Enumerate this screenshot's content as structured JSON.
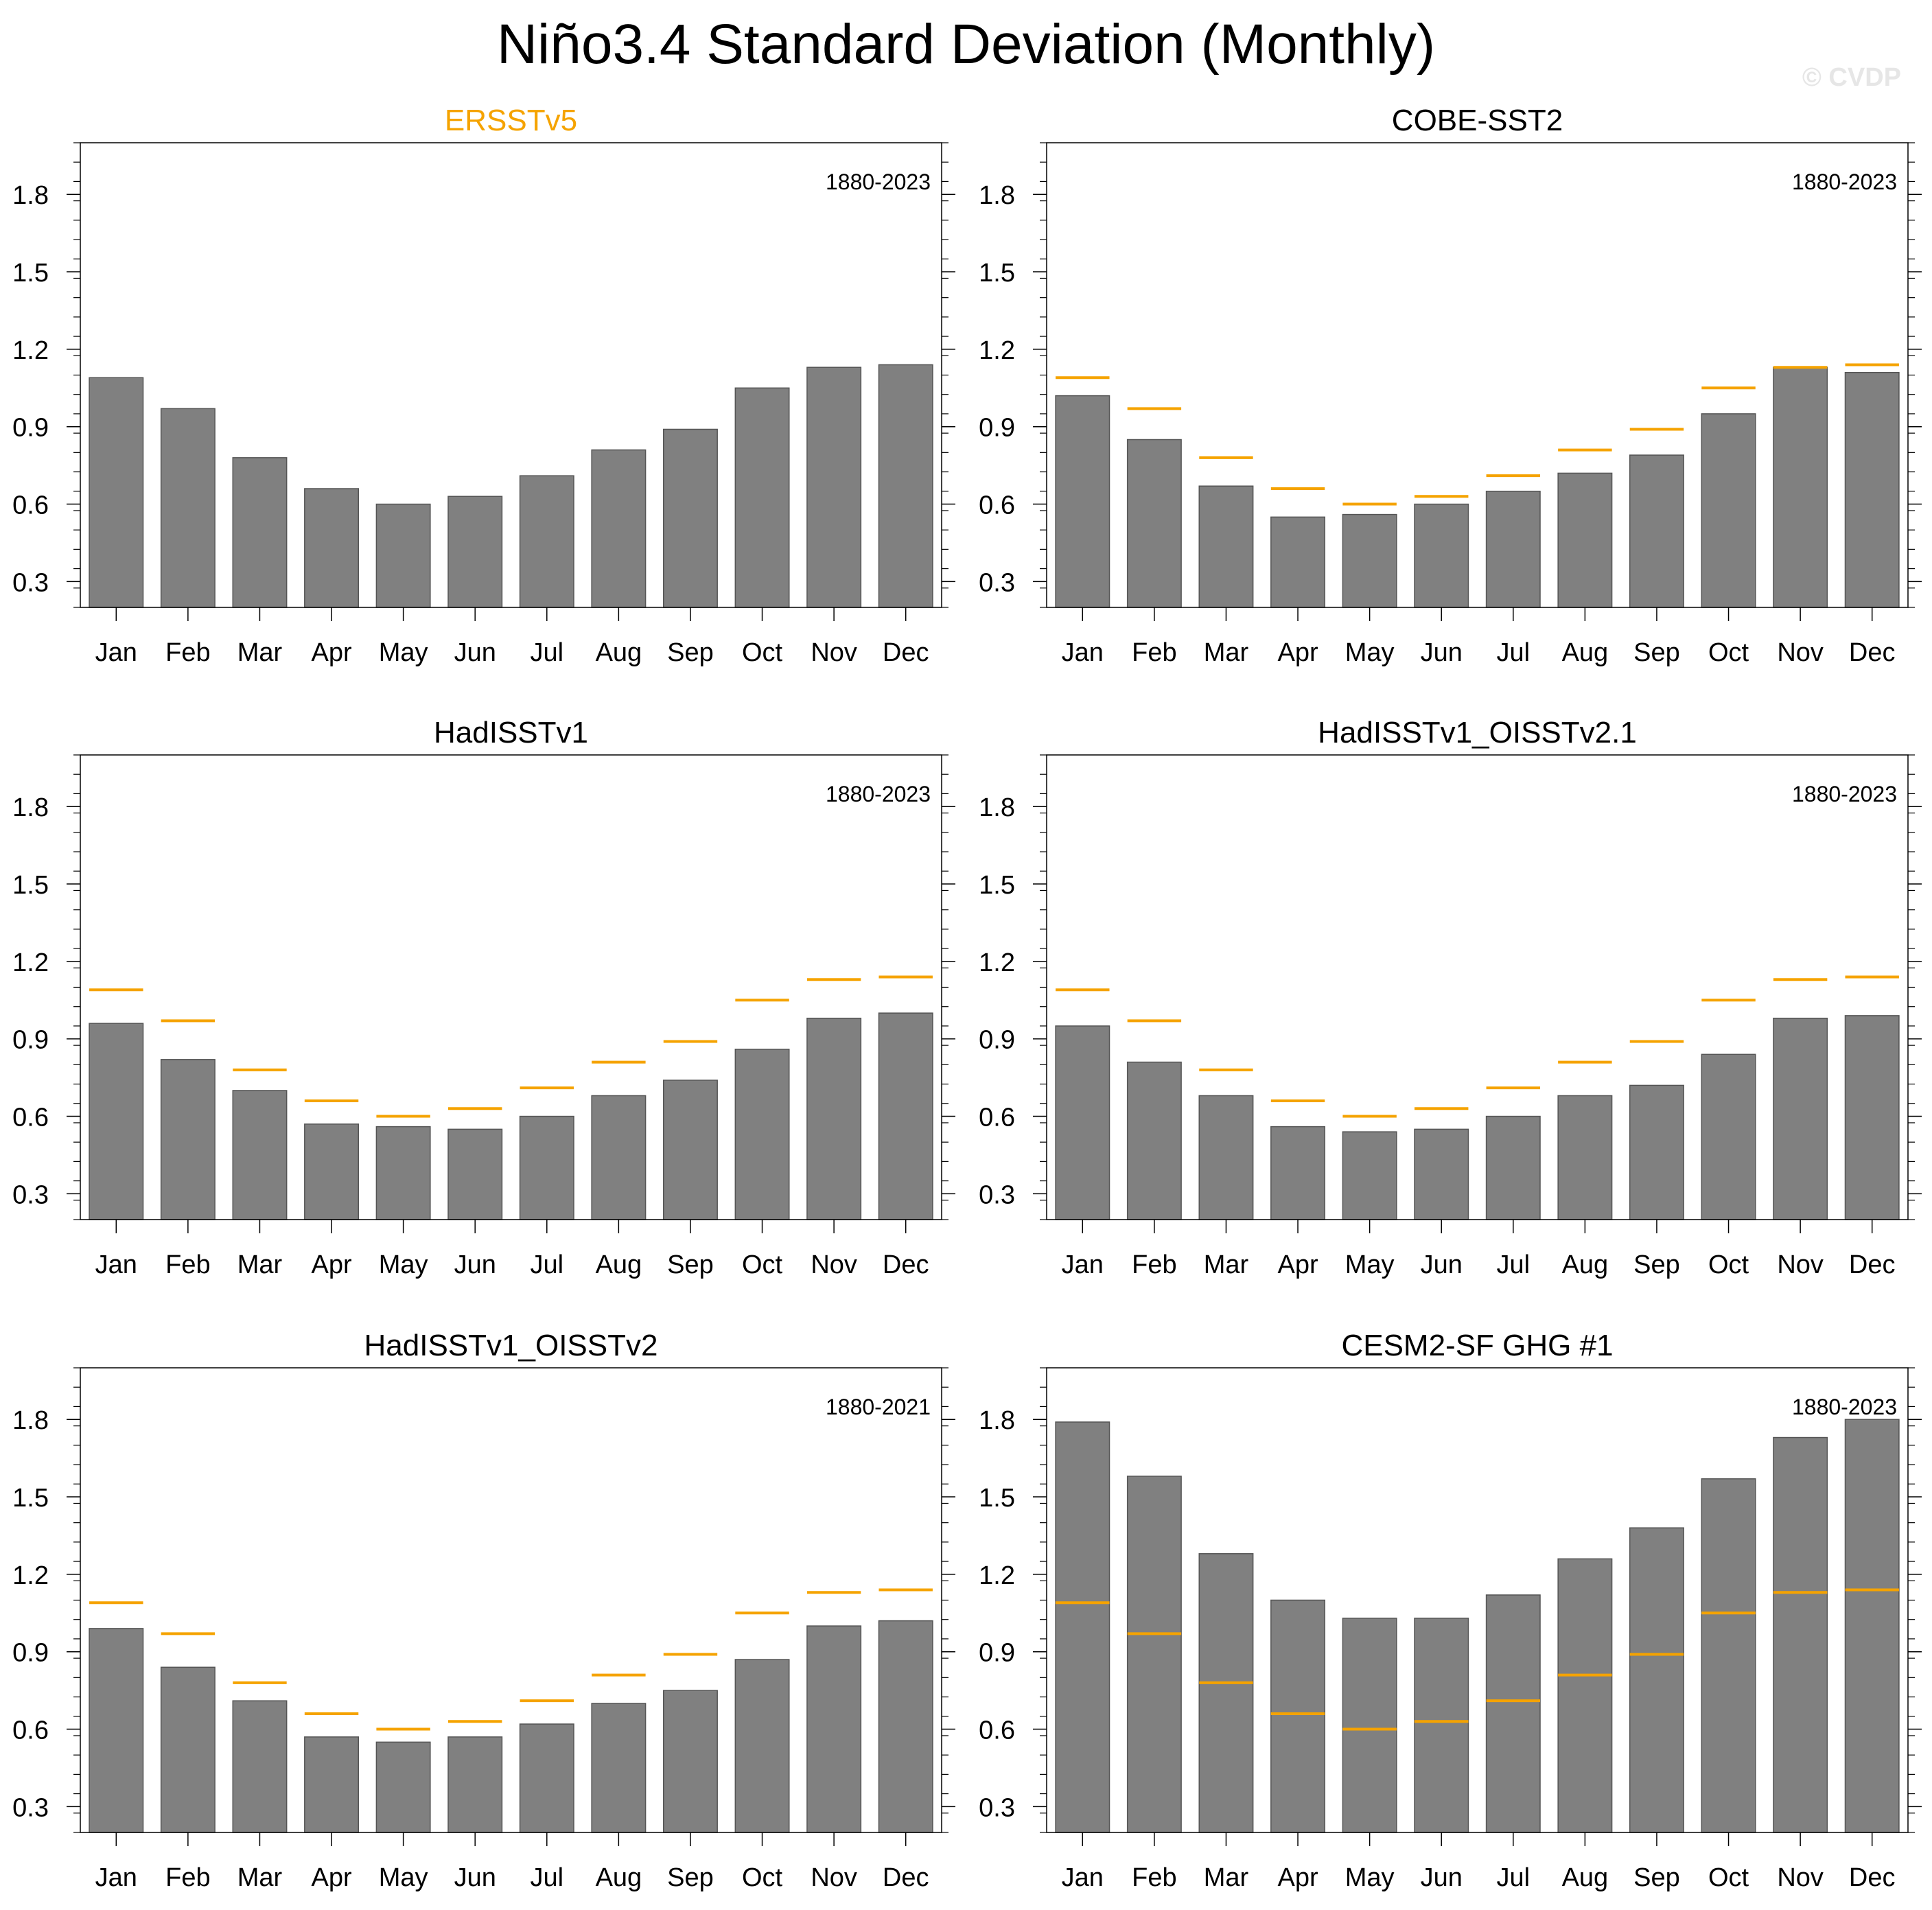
{
  "figure": {
    "title": "Niño3.4 Standard Deviation (Monthly)",
    "watermark": "© CVDP"
  },
  "colors": {
    "bar": "#808080",
    "reference_line": "#f5a300",
    "highlight_title": "#f5a300"
  },
  "chart_data": [
    {
      "type": "bar",
      "title": "ERSSTv5",
      "title_highlight": true,
      "period": "1880-2023",
      "categories": [
        "Jan",
        "Feb",
        "Mar",
        "Apr",
        "May",
        "Jun",
        "Jul",
        "Aug",
        "Sep",
        "Oct",
        "Nov",
        "Dec"
      ],
      "values": [
        1.09,
        0.97,
        0.78,
        0.66,
        0.6,
        0.63,
        0.71,
        0.81,
        0.89,
        1.05,
        1.13,
        1.14
      ],
      "reference": [],
      "ylim": [
        0.2,
        2.0
      ],
      "yticks": [
        "0.3",
        "0.6",
        "0.9",
        "1.2",
        "1.5",
        "1.8"
      ]
    },
    {
      "type": "bar",
      "title": "COBE-SST2",
      "title_highlight": false,
      "period": "1880-2023",
      "categories": [
        "Jan",
        "Feb",
        "Mar",
        "Apr",
        "May",
        "Jun",
        "Jul",
        "Aug",
        "Sep",
        "Oct",
        "Nov",
        "Dec"
      ],
      "values": [
        1.02,
        0.85,
        0.67,
        0.55,
        0.56,
        0.6,
        0.65,
        0.72,
        0.79,
        0.95,
        1.13,
        1.11
      ],
      "reference": [
        1.09,
        0.97,
        0.78,
        0.66,
        0.6,
        0.63,
        0.71,
        0.81,
        0.89,
        1.05,
        1.13,
        1.14
      ],
      "ylim": [
        0.2,
        2.0
      ],
      "yticks": [
        "0.3",
        "0.6",
        "0.9",
        "1.2",
        "1.5",
        "1.8"
      ]
    },
    {
      "type": "bar",
      "title": "HadISSTv1",
      "title_highlight": false,
      "period": "1880-2023",
      "categories": [
        "Jan",
        "Feb",
        "Mar",
        "Apr",
        "May",
        "Jun",
        "Jul",
        "Aug",
        "Sep",
        "Oct",
        "Nov",
        "Dec"
      ],
      "values": [
        0.96,
        0.82,
        0.7,
        0.57,
        0.56,
        0.55,
        0.6,
        0.68,
        0.74,
        0.86,
        0.98,
        1.0
      ],
      "reference": [
        1.09,
        0.97,
        0.78,
        0.66,
        0.6,
        0.63,
        0.71,
        0.81,
        0.89,
        1.05,
        1.13,
        1.14
      ],
      "ylim": [
        0.2,
        2.0
      ],
      "yticks": [
        "0.3",
        "0.6",
        "0.9",
        "1.2",
        "1.5",
        "1.8"
      ]
    },
    {
      "type": "bar",
      "title": "HadISSTv1_OISSTv2.1",
      "title_highlight": false,
      "period": "1880-2023",
      "categories": [
        "Jan",
        "Feb",
        "Mar",
        "Apr",
        "May",
        "Jun",
        "Jul",
        "Aug",
        "Sep",
        "Oct",
        "Nov",
        "Dec"
      ],
      "values": [
        0.95,
        0.81,
        0.68,
        0.56,
        0.54,
        0.55,
        0.6,
        0.68,
        0.72,
        0.84,
        0.98,
        0.99
      ],
      "reference": [
        1.09,
        0.97,
        0.78,
        0.66,
        0.6,
        0.63,
        0.71,
        0.81,
        0.89,
        1.05,
        1.13,
        1.14
      ],
      "ylim": [
        0.2,
        2.0
      ],
      "yticks": [
        "0.3",
        "0.6",
        "0.9",
        "1.2",
        "1.5",
        "1.8"
      ]
    },
    {
      "type": "bar",
      "title": "HadISSTv1_OISSTv2",
      "title_highlight": false,
      "period": "1880-2021",
      "categories": [
        "Jan",
        "Feb",
        "Mar",
        "Apr",
        "May",
        "Jun",
        "Jul",
        "Aug",
        "Sep",
        "Oct",
        "Nov",
        "Dec"
      ],
      "values": [
        0.99,
        0.84,
        0.71,
        0.57,
        0.55,
        0.57,
        0.62,
        0.7,
        0.75,
        0.87,
        1.0,
        1.02
      ],
      "reference": [
        1.09,
        0.97,
        0.78,
        0.66,
        0.6,
        0.63,
        0.71,
        0.81,
        0.89,
        1.05,
        1.13,
        1.14
      ],
      "ylim": [
        0.2,
        2.0
      ],
      "yticks": [
        "0.3",
        "0.6",
        "0.9",
        "1.2",
        "1.5",
        "1.8"
      ]
    },
    {
      "type": "bar",
      "title": "CESM2-SF GHG #1",
      "title_highlight": false,
      "period": "1880-2023",
      "categories": [
        "Jan",
        "Feb",
        "Mar",
        "Apr",
        "May",
        "Jun",
        "Jul",
        "Aug",
        "Sep",
        "Oct",
        "Nov",
        "Dec"
      ],
      "values": [
        1.79,
        1.58,
        1.28,
        1.1,
        1.03,
        1.03,
        1.12,
        1.26,
        1.38,
        1.57,
        1.73,
        1.8
      ],
      "reference": [
        1.09,
        0.97,
        0.78,
        0.66,
        0.6,
        0.63,
        0.71,
        0.81,
        0.89,
        1.05,
        1.13,
        1.14
      ],
      "ylim": [
        0.2,
        2.0
      ],
      "yticks": [
        "0.3",
        "0.6",
        "0.9",
        "1.2",
        "1.5",
        "1.8"
      ]
    }
  ]
}
